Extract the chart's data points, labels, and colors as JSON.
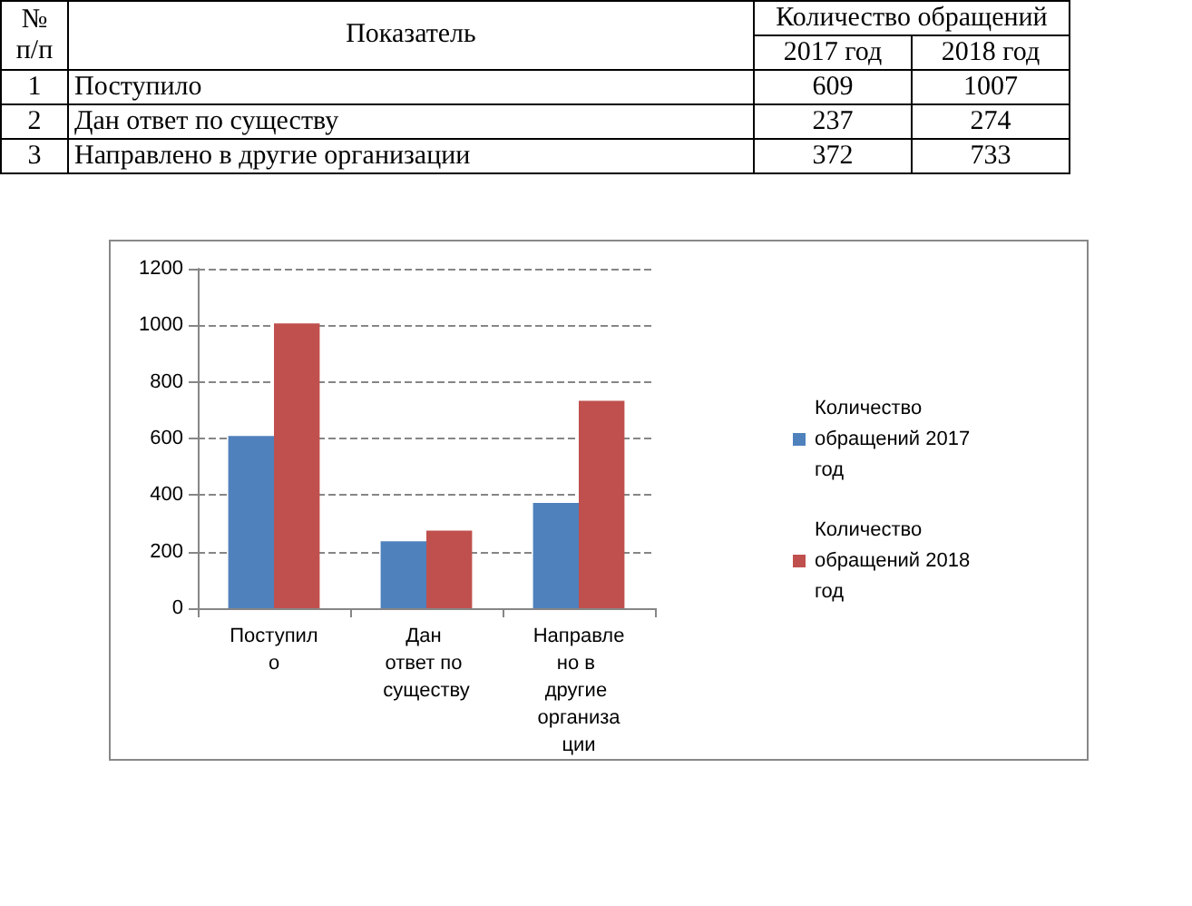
{
  "chart_data": [
    {
      "type": "other",
      "annotations": [
        "№ п/п",
        "Показатель",
        "Количество обращений",
        "1",
        "2",
        "3"
      ],
      "categories": [
        "Поступило",
        "Дан ответ по существу",
        "Направлено в другие организации"
      ],
      "series": [
        {
          "name": "2017 год",
          "values": [
            609,
            237,
            372
          ]
        },
        {
          "name": "2018 год",
          "values": [
            1007,
            274,
            733
          ]
        }
      ],
      "data_labels": true
    },
    {
      "type": "bar",
      "categories": [
        "Поступило",
        "Дан ответ по существу",
        "Направлено в другие организации"
      ],
      "series": [
        {
          "name": "Количество обращений 2017 год",
          "color": "#4f81bd",
          "values": [
            609,
            237,
            372
          ]
        },
        {
          "name": "Количество обращений 2018 год",
          "color": "#c0504d",
          "values": [
            1007,
            274,
            733
          ]
        }
      ],
      "ylim": [
        0,
        1200
      ],
      "yticks": [
        0,
        200,
        400,
        600,
        800,
        1000,
        1200
      ],
      "grid": "y",
      "legend": "right"
    }
  ]
}
